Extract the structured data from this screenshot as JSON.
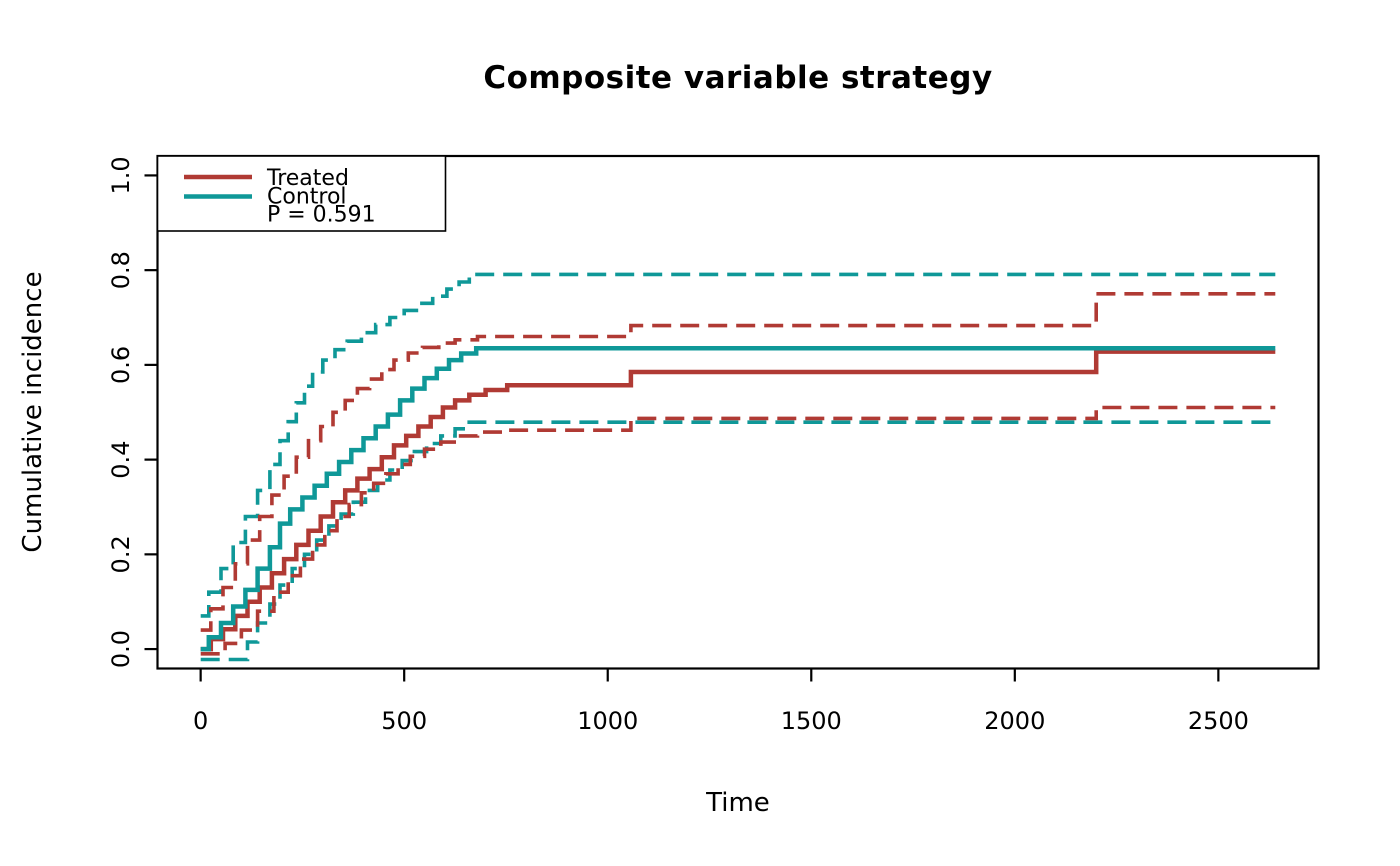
{
  "chart_data": {
    "type": "line",
    "subtype": "step",
    "title": "Composite variable strategy",
    "xlabel": "Time",
    "ylabel": "Cumulative incidence",
    "xlim": [
      -106,
      2746
    ],
    "ylim": [
      -0.041,
      1.041
    ],
    "grid": false,
    "x_ticks": [
      {
        "value": 0,
        "label": "0"
      },
      {
        "value": 500,
        "label": "500"
      },
      {
        "value": 1000,
        "label": "1000"
      },
      {
        "value": 1500,
        "label": "1500"
      },
      {
        "value": 2000,
        "label": "2000"
      },
      {
        "value": 2500,
        "label": "2500"
      }
    ],
    "y_ticks": [
      {
        "value": 0.0,
        "label": "0.0"
      },
      {
        "value": 0.2,
        "label": "0.2"
      },
      {
        "value": 0.4,
        "label": "0.4"
      },
      {
        "value": 0.6,
        "label": "0.6"
      },
      {
        "value": 0.8,
        "label": "0.8"
      },
      {
        "value": 1.0,
        "label": "1.0"
      }
    ],
    "colors": {
      "treated": "#B03A34",
      "control": "#0F9898",
      "axis": "#000000"
    },
    "legend": {
      "position": "topleft",
      "entries": [
        {
          "name": "Treated",
          "color": "#B03A34",
          "style": "solid"
        },
        {
          "name": "Control",
          "color": "#0F9898",
          "style": "solid"
        }
      ],
      "p_value_label": "P = 0.591"
    },
    "series": [
      {
        "name": "Control upper 95% CI",
        "color": "#0F9898",
        "style": "dashed",
        "points": [
          [
            0,
            0.07
          ],
          [
            20,
            0.12
          ],
          [
            50,
            0.17
          ],
          [
            80,
            0.225
          ],
          [
            110,
            0.28
          ],
          [
            140,
            0.335
          ],
          [
            170,
            0.39
          ],
          [
            195,
            0.44
          ],
          [
            215,
            0.48
          ],
          [
            235,
            0.52
          ],
          [
            255,
            0.555
          ],
          [
            275,
            0.585
          ],
          [
            300,
            0.61
          ],
          [
            330,
            0.632
          ],
          [
            360,
            0.65
          ],
          [
            395,
            0.668
          ],
          [
            430,
            0.685
          ],
          [
            465,
            0.7
          ],
          [
            500,
            0.715
          ],
          [
            535,
            0.73
          ],
          [
            570,
            0.745
          ],
          [
            605,
            0.76
          ],
          [
            635,
            0.775
          ],
          [
            660,
            0.791
          ],
          [
            2640,
            0.791
          ]
        ]
      },
      {
        "name": "Control lower 95% CI",
        "color": "#0F9898",
        "style": "dashed",
        "points": [
          [
            0,
            -0.022
          ],
          [
            90,
            -0.022
          ],
          [
            115,
            0.015
          ],
          [
            140,
            0.055
          ],
          [
            170,
            0.095
          ],
          [
            195,
            0.135
          ],
          [
            225,
            0.17
          ],
          [
            255,
            0.2
          ],
          [
            285,
            0.23
          ],
          [
            315,
            0.26
          ],
          [
            345,
            0.285
          ],
          [
            375,
            0.31
          ],
          [
            405,
            0.335
          ],
          [
            435,
            0.357
          ],
          [
            465,
            0.378
          ],
          [
            495,
            0.398
          ],
          [
            525,
            0.417
          ],
          [
            555,
            0.434
          ],
          [
            590,
            0.45
          ],
          [
            625,
            0.465
          ],
          [
            655,
            0.479
          ],
          [
            2640,
            0.479
          ]
        ]
      },
      {
        "name": "Treated upper 95% CI",
        "color": "#B03A34",
        "style": "dashed",
        "points": [
          [
            0,
            0.04
          ],
          [
            25,
            0.085
          ],
          [
            55,
            0.13
          ],
          [
            85,
            0.18
          ],
          [
            115,
            0.23
          ],
          [
            145,
            0.28
          ],
          [
            175,
            0.325
          ],
          [
            205,
            0.365
          ],
          [
            235,
            0.405
          ],
          [
            265,
            0.44
          ],
          [
            295,
            0.47
          ],
          [
            325,
            0.5
          ],
          [
            355,
            0.525
          ],
          [
            385,
            0.55
          ],
          [
            415,
            0.57
          ],
          [
            445,
            0.59
          ],
          [
            475,
            0.61
          ],
          [
            510,
            0.625
          ],
          [
            545,
            0.637
          ],
          [
            585,
            0.646
          ],
          [
            625,
            0.653
          ],
          [
            680,
            0.66
          ],
          [
            1057,
            0.683
          ],
          [
            2200,
            0.75
          ],
          [
            2640,
            0.75
          ]
        ]
      },
      {
        "name": "Treated lower 95% CI",
        "color": "#B03A34",
        "style": "dashed",
        "points": [
          [
            0,
            -0.01
          ],
          [
            60,
            0.012
          ],
          [
            100,
            0.04
          ],
          [
            140,
            0.08
          ],
          [
            180,
            0.12
          ],
          [
            215,
            0.155
          ],
          [
            245,
            0.19
          ],
          [
            275,
            0.22
          ],
          [
            305,
            0.25
          ],
          [
            335,
            0.28
          ],
          [
            365,
            0.305
          ],
          [
            395,
            0.33
          ],
          [
            425,
            0.35
          ],
          [
            455,
            0.37
          ],
          [
            485,
            0.39
          ],
          [
            515,
            0.407
          ],
          [
            550,
            0.422
          ],
          [
            590,
            0.437
          ],
          [
            630,
            0.45
          ],
          [
            680,
            0.458
          ],
          [
            753,
            0.462
          ],
          [
            1057,
            0.487
          ],
          [
            2200,
            0.51
          ],
          [
            2640,
            0.51
          ]
        ]
      },
      {
        "name": "Treated",
        "color": "#B03A34",
        "style": "solid",
        "points": [
          [
            0,
            0
          ],
          [
            25,
            0.021
          ],
          [
            55,
            0.042
          ],
          [
            85,
            0.07
          ],
          [
            115,
            0.1
          ],
          [
            145,
            0.13
          ],
          [
            175,
            0.16
          ],
          [
            205,
            0.19
          ],
          [
            235,
            0.22
          ],
          [
            265,
            0.25
          ],
          [
            295,
            0.28
          ],
          [
            325,
            0.31
          ],
          [
            355,
            0.335
          ],
          [
            385,
            0.36
          ],
          [
            415,
            0.38
          ],
          [
            445,
            0.405
          ],
          [
            475,
            0.43
          ],
          [
            505,
            0.45
          ],
          [
            535,
            0.47
          ],
          [
            565,
            0.49
          ],
          [
            595,
            0.51
          ],
          [
            625,
            0.525
          ],
          [
            660,
            0.537
          ],
          [
            700,
            0.547
          ],
          [
            753,
            0.557
          ],
          [
            1057,
            0.585
          ],
          [
            2200,
            0.628
          ],
          [
            2640,
            0.628
          ]
        ]
      },
      {
        "name": "Control",
        "color": "#0F9898",
        "style": "solid",
        "points": [
          [
            0,
            0
          ],
          [
            20,
            0.025
          ],
          [
            50,
            0.055
          ],
          [
            80,
            0.09
          ],
          [
            110,
            0.125
          ],
          [
            140,
            0.17
          ],
          [
            170,
            0.215
          ],
          [
            195,
            0.265
          ],
          [
            220,
            0.295
          ],
          [
            250,
            0.32
          ],
          [
            280,
            0.345
          ],
          [
            310,
            0.37
          ],
          [
            340,
            0.395
          ],
          [
            370,
            0.42
          ],
          [
            400,
            0.445
          ],
          [
            430,
            0.47
          ],
          [
            460,
            0.495
          ],
          [
            490,
            0.525
          ],
          [
            520,
            0.55
          ],
          [
            550,
            0.572
          ],
          [
            580,
            0.592
          ],
          [
            610,
            0.61
          ],
          [
            640,
            0.624
          ],
          [
            677,
            0.635
          ],
          [
            2640,
            0.635
          ]
        ]
      }
    ]
  }
}
